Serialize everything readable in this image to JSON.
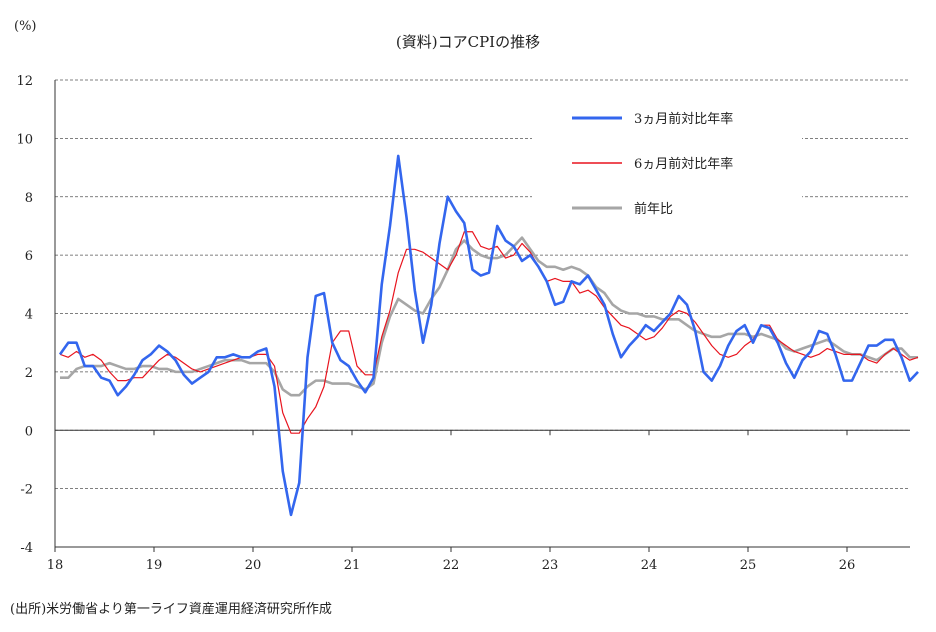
{
  "chart_data": {
    "type": "line",
    "title": "(資料)コアCPIの推移",
    "y_unit": "(%)",
    "ylim": [
      -4,
      12
    ],
    "y_ticks": [
      "12",
      "10",
      "8",
      "6",
      "4",
      "2",
      "0",
      "-2",
      "-4"
    ],
    "x_ticks": [
      "18",
      "19",
      "20",
      "21",
      "22",
      "23",
      "24",
      "25",
      "26"
    ],
    "x_start": "2018-01",
    "x_end": "2026-08",
    "grid": "horizontal-dashed",
    "legend_position": "top-right",
    "series": [
      {
        "name": "3ヵ月前対比年率",
        "color": "#3366ee",
        "values": [
          2.6,
          3.0,
          3.0,
          2.2,
          2.2,
          1.8,
          1.7,
          1.2,
          1.5,
          1.9,
          2.4,
          2.6,
          2.9,
          2.7,
          2.4,
          1.9,
          1.6,
          1.8,
          2.0,
          2.5,
          2.5,
          2.6,
          2.5,
          2.5,
          2.7,
          2.8,
          1.5,
          -1.4,
          -2.9,
          -1.8,
          2.5,
          4.6,
          4.7,
          3.0,
          2.4,
          2.2,
          1.7,
          1.3,
          1.8,
          5.0,
          7.0,
          9.4,
          7.3,
          4.8,
          3.0,
          4.3,
          6.4,
          8.0,
          7.5,
          7.1,
          5.5,
          5.3,
          5.4,
          7.0,
          6.5,
          6.3,
          5.8,
          6.0,
          5.6,
          5.1,
          4.3,
          4.4,
          5.1,
          5.0,
          5.3,
          4.8,
          4.3,
          3.3,
          2.5,
          2.9,
          3.2,
          3.6,
          3.4,
          3.7,
          4.0,
          4.6,
          4.3,
          3.4,
          2.0,
          1.7,
          2.2,
          2.9,
          3.4,
          3.6,
          3.0,
          3.6,
          3.5,
          3.0,
          2.3,
          1.8,
          2.4,
          2.7,
          3.4,
          3.3,
          2.6,
          1.7,
          1.7,
          2.3,
          2.9,
          2.9,
          3.1,
          3.1,
          2.5,
          1.7,
          2.0
        ]
      },
      {
        "name": "6ヵ月前対比年率",
        "color": "#e8141e",
        "values": [
          2.6,
          2.5,
          2.7,
          2.5,
          2.6,
          2.4,
          2.0,
          1.7,
          1.7,
          1.8,
          1.8,
          2.1,
          2.4,
          2.6,
          2.5,
          2.3,
          2.1,
          2.0,
          2.1,
          2.2,
          2.3,
          2.4,
          2.5,
          2.5,
          2.6,
          2.6,
          2.2,
          0.6,
          -0.1,
          -0.1,
          0.4,
          0.8,
          1.5,
          3.0,
          3.4,
          3.4,
          2.2,
          1.9,
          1.9,
          3.2,
          4.1,
          5.4,
          6.2,
          6.2,
          6.1,
          5.9,
          5.7,
          5.5,
          6.0,
          6.8,
          6.8,
          6.3,
          6.2,
          6.3,
          5.9,
          6.0,
          6.4,
          6.1,
          5.6,
          5.1,
          5.2,
          5.1,
          5.1,
          4.7,
          4.8,
          4.6,
          4.2,
          3.9,
          3.6,
          3.5,
          3.3,
          3.1,
          3.2,
          3.5,
          3.9,
          4.1,
          4.0,
          3.7,
          3.3,
          2.9,
          2.6,
          2.5,
          2.6,
          2.9,
          3.1,
          3.6,
          3.6,
          3.1,
          2.9,
          2.7,
          2.6,
          2.5,
          2.6,
          2.8,
          2.7,
          2.6,
          2.6,
          2.6,
          2.4,
          2.3,
          2.6,
          2.8,
          2.6,
          2.4,
          2.5
        ]
      },
      {
        "name": "前年比",
        "color": "#a6a6a6",
        "values": [
          1.8,
          1.8,
          2.1,
          2.2,
          2.2,
          2.2,
          2.3,
          2.2,
          2.1,
          2.1,
          2.2,
          2.2,
          2.1,
          2.1,
          2.0,
          2.0,
          2.0,
          2.1,
          2.2,
          2.3,
          2.4,
          2.4,
          2.4,
          2.3,
          2.3,
          2.3,
          2.0,
          1.4,
          1.2,
          1.2,
          1.5,
          1.7,
          1.7,
          1.6,
          1.6,
          1.6,
          1.5,
          1.4,
          1.6,
          3.0,
          3.9,
          4.5,
          4.3,
          4.1,
          4.0,
          4.5,
          4.9,
          5.5,
          6.2,
          6.5,
          6.2,
          6.0,
          5.9,
          5.9,
          6.0,
          6.3,
          6.6,
          6.2,
          5.8,
          5.6,
          5.6,
          5.5,
          5.6,
          5.5,
          5.3,
          4.9,
          4.7,
          4.3,
          4.1,
          4.0,
          4.0,
          3.9,
          3.9,
          3.8,
          3.8,
          3.8,
          3.6,
          3.4,
          3.3,
          3.2,
          3.2,
          3.3,
          3.3,
          3.3,
          3.2,
          3.3,
          3.2,
          3.1,
          2.8,
          2.7,
          2.8,
          2.9,
          3.0,
          3.1,
          2.9,
          2.7,
          2.6,
          2.6,
          2.5,
          2.4,
          2.6,
          2.8,
          2.8,
          2.5,
          2.5
        ]
      }
    ]
  },
  "footer": {
    "source": "(出所)米労働省より第一ライフ資産運用経済研究所作成"
  }
}
